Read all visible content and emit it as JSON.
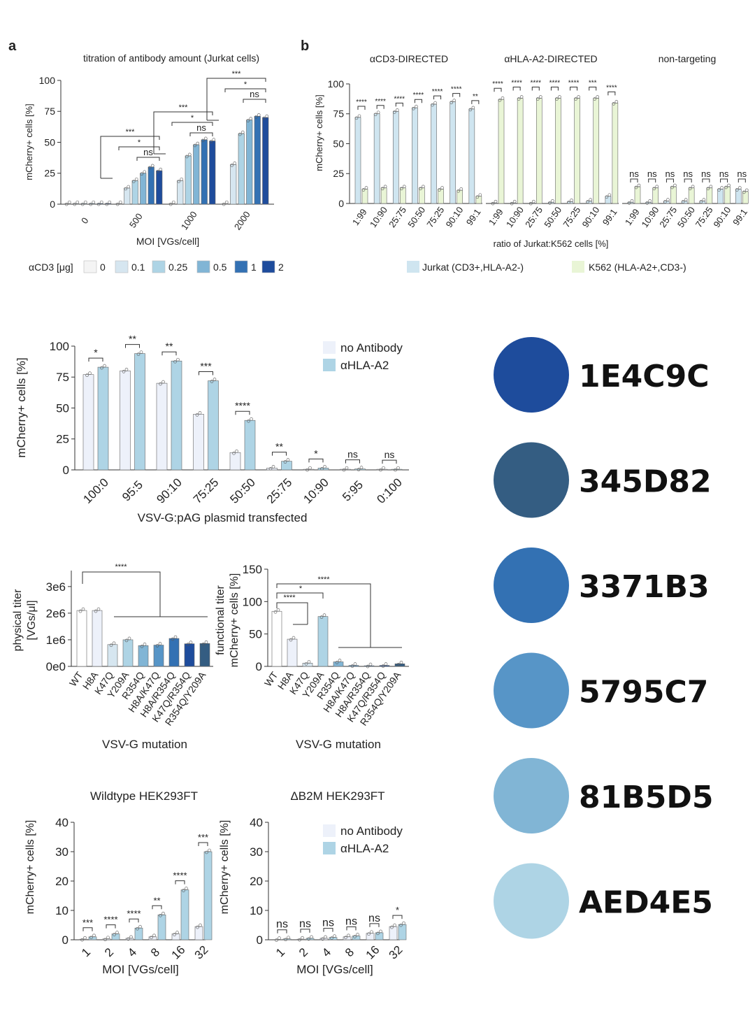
{
  "chart_data": [
    {
      "id": "a",
      "type": "bar",
      "panel_label": "a",
      "title": "titration of antibody amount (Jurkat cells)",
      "xlabel": "MOI [VGs/cell]",
      "ylabel": "mCherry+ cells [%]",
      "ylim": [
        0,
        100
      ],
      "yticks": [
        0,
        25,
        50,
        75,
        100
      ],
      "categories": [
        "0",
        "500",
        "1000",
        "2000"
      ],
      "legend_title": "αCD3 [μg]",
      "series": [
        {
          "name": "0",
          "color": "#F4F4F4",
          "values": [
            0.5,
            0.5,
            0.5,
            0.5
          ]
        },
        {
          "name": "0.1",
          "color": "#D6E6F0",
          "values": [
            0.5,
            13,
            19,
            32
          ]
        },
        {
          "name": "0.25",
          "color": "#AED4E5",
          "values": [
            0.5,
            19,
            39,
            57
          ]
        },
        {
          "name": "0.5",
          "color": "#81B5D5",
          "values": [
            0.5,
            25,
            48,
            68
          ]
        },
        {
          "name": "1",
          "color": "#3371B3",
          "values": [
            0.5,
            30,
            52,
            71
          ]
        },
        {
          "name": "2",
          "color": "#1E4C9C",
          "values": [
            0.5,
            27,
            51,
            70
          ]
        }
      ],
      "significance": [
        {
          "label": "***",
          "group": 1
        },
        {
          "label": "*",
          "group": 1
        },
        {
          "label": "ns",
          "group": 1
        },
        {
          "label": "***",
          "group": 2
        },
        {
          "label": "*",
          "group": 2
        },
        {
          "label": "ns",
          "group": 2
        },
        {
          "label": "***",
          "group": 3
        },
        {
          "label": "*",
          "group": 3
        },
        {
          "label": "ns",
          "group": 3
        }
      ]
    },
    {
      "id": "b",
      "type": "bar",
      "panel_label": "b",
      "subtitles": [
        "αCD3-DIRECTED",
        "αHLA-A2-DIRECTED",
        "non-targeting"
      ],
      "xlabel": "ratio of Jurkat:K562 cells [%]",
      "ylabel": "mCherry+ cells [%]",
      "ylim": [
        0,
        100
      ],
      "yticks": [
        0,
        25,
        50,
        75,
        100
      ],
      "categories": [
        "1:99",
        "10:90",
        "25:75",
        "50:50",
        "75:25",
        "90:10",
        "99:1"
      ],
      "legend": [
        {
          "name": "Jurkat (CD3+,HLA-A2-)",
          "color": "#CFE5F0"
        },
        {
          "name": "K562 (HLA-A2+,CD3-)",
          "color": "#E9F5D6"
        }
      ],
      "groups": [
        {
          "name": "αCD3-DIRECTED",
          "jurkat": [
            72,
            75,
            77,
            80,
            83,
            85,
            79
          ],
          "k562": [
            12,
            13,
            13,
            13,
            12,
            11,
            6
          ],
          "significance": [
            "****",
            "****",
            "****",
            "****",
            "****",
            "****",
            "**"
          ]
        },
        {
          "name": "αHLA-A2-DIRECTED",
          "jurkat": [
            0.5,
            0.5,
            0.5,
            1,
            1.5,
            2,
            6
          ],
          "k562": [
            87,
            88,
            88,
            88,
            88,
            88,
            84
          ],
          "significance": [
            "****",
            "****",
            "****",
            "****",
            "****",
            "***",
            "****"
          ]
        },
        {
          "name": "non-targeting",
          "jurkat": [
            1,
            1,
            2,
            2,
            2,
            12,
            12
          ],
          "k562": [
            14,
            13,
            14,
            13,
            13,
            14,
            10
          ],
          "significance": [
            "ns",
            "ns",
            "ns",
            "ns",
            "ns",
            "ns",
            "ns"
          ]
        }
      ]
    },
    {
      "id": "c",
      "type": "bar",
      "xlabel": "VSV-G:pAG plasmid transfected",
      "ylabel": "mCherry+ cells [%]",
      "ylim": [
        0,
        100
      ],
      "yticks": [
        0,
        25,
        50,
        75,
        100
      ],
      "categories": [
        "100:0",
        "95:5",
        "90:10",
        "75:25",
        "50:50",
        "25:75",
        "10:90",
        "5:95",
        "0:100"
      ],
      "series": [
        {
          "name": "no Antibody",
          "color": "#EDF1FA",
          "values": [
            77,
            80,
            70,
            45,
            14,
            1.5,
            0.5,
            0.5,
            0.5
          ]
        },
        {
          "name": "αHLA-A2",
          "color": "#AED4E5",
          "values": [
            83,
            94,
            88,
            72,
            40,
            7,
            1.5,
            0.8,
            0.5
          ]
        }
      ],
      "significance": [
        "*",
        "**",
        "**",
        "***",
        "****",
        "**",
        "*",
        "ns",
        "ns"
      ]
    },
    {
      "id": "d",
      "type": "bar",
      "xlabel": "VSV-G mutation",
      "ylabel": "physical titer [VGs/μl]",
      "yticks_labels": [
        "0e0",
        "1e6",
        "2e6",
        "3e6"
      ],
      "ylim": [
        0,
        3600000
      ],
      "categories": [
        "WT",
        "H8A",
        "K47Q",
        "Y209A",
        "R354Q",
        "H8A/K47Q",
        "H8A/R354Q",
        "K47Q/R354Q",
        "R354Q/Y209A"
      ],
      "values": [
        2100000,
        2100000,
        820000,
        1000000,
        780000,
        800000,
        1050000,
        850000,
        860000
      ],
      "colors": [
        "#FFFFFF",
        "#EDF1FA",
        "#D6E6F0",
        "#AED4E5",
        "#81B5D5",
        "#5795C7",
        "#3371B3",
        "#1E4C9C",
        "#345D82"
      ],
      "significance": [
        {
          "label": "****"
        }
      ]
    },
    {
      "id": "e",
      "type": "bar",
      "xlabel": "VSV-G mutation",
      "ylabel": "functional titer mCherry+ cells [%]",
      "yticks": [
        0,
        50,
        100,
        150
      ],
      "ylim": [
        0,
        150
      ],
      "categories": [
        "WT",
        "H8A",
        "K47Q",
        "Y209A",
        "R354Q",
        "H8A/K47Q",
        "H8A/R354Q",
        "K47Q/R354Q",
        "R354Q/Y209A"
      ],
      "values": [
        85,
        42,
        5,
        77,
        7,
        1.5,
        1,
        1.5,
        4
      ],
      "colors": [
        "#FFFFFF",
        "#EDF1FA",
        "#D6E6F0",
        "#AED4E5",
        "#81B5D5",
        "#5795C7",
        "#3371B3",
        "#1E4C9C",
        "#345D82"
      ],
      "significance": [
        {
          "label": "****"
        },
        {
          "label": "*"
        },
        {
          "label": "****"
        }
      ]
    },
    {
      "id": "f",
      "type": "bar",
      "title": "Wildtype HEK293FT",
      "xlabel": "MOI [VGs/cell]",
      "ylabel": "mCherry+ cells [%]",
      "ylim": [
        0,
        40
      ],
      "yticks": [
        0,
        10,
        20,
        30,
        40
      ],
      "categories": [
        "1",
        "2",
        "4",
        "8",
        "16",
        "32"
      ],
      "series": [
        {
          "name": "no Antibody",
          "color": "#EDF1FA",
          "values": [
            0.2,
            0.3,
            0.5,
            1,
            2,
            4.5
          ]
        },
        {
          "name": "αHLA-A2",
          "color": "#AED4E5",
          "values": [
            1,
            2,
            4,
            8.5,
            17,
            30
          ]
        }
      ],
      "significance": [
        "***",
        "****",
        "****",
        "**",
        "****",
        "***"
      ]
    },
    {
      "id": "g",
      "type": "bar",
      "title": "ΔB2M HEK293FT",
      "xlabel": "MOI [VGs/cell]",
      "ylabel": "mCherry+ cells [%]",
      "ylim": [
        0,
        40
      ],
      "yticks": [
        0,
        10,
        20,
        30,
        40
      ],
      "categories": [
        "1",
        "2",
        "4",
        "8",
        "16",
        "32"
      ],
      "series": [
        {
          "name": "no Antibody",
          "color": "#EDF1FA",
          "values": [
            0.1,
            0.2,
            0.5,
            1,
            2.2,
            4.5
          ]
        },
        {
          "name": "αHLA-A2",
          "color": "#AED4E5",
          "values": [
            0.3,
            0.5,
            0.8,
            1.3,
            2.4,
            5.2
          ]
        }
      ],
      "significance": [
        "ns",
        "ns",
        "ns",
        "ns",
        "ns",
        "*"
      ]
    }
  ],
  "palette": [
    {
      "hex": "1E4C9C",
      "color": "#1E4C9C"
    },
    {
      "hex": "345D82",
      "color": "#345D82"
    },
    {
      "hex": "3371B3",
      "color": "#3371B3"
    },
    {
      "hex": "5795C7",
      "color": "#5795C7"
    },
    {
      "hex": "81B5D5",
      "color": "#81B5D5"
    },
    {
      "hex": "AED4E5",
      "color": "#AED4E5"
    }
  ]
}
